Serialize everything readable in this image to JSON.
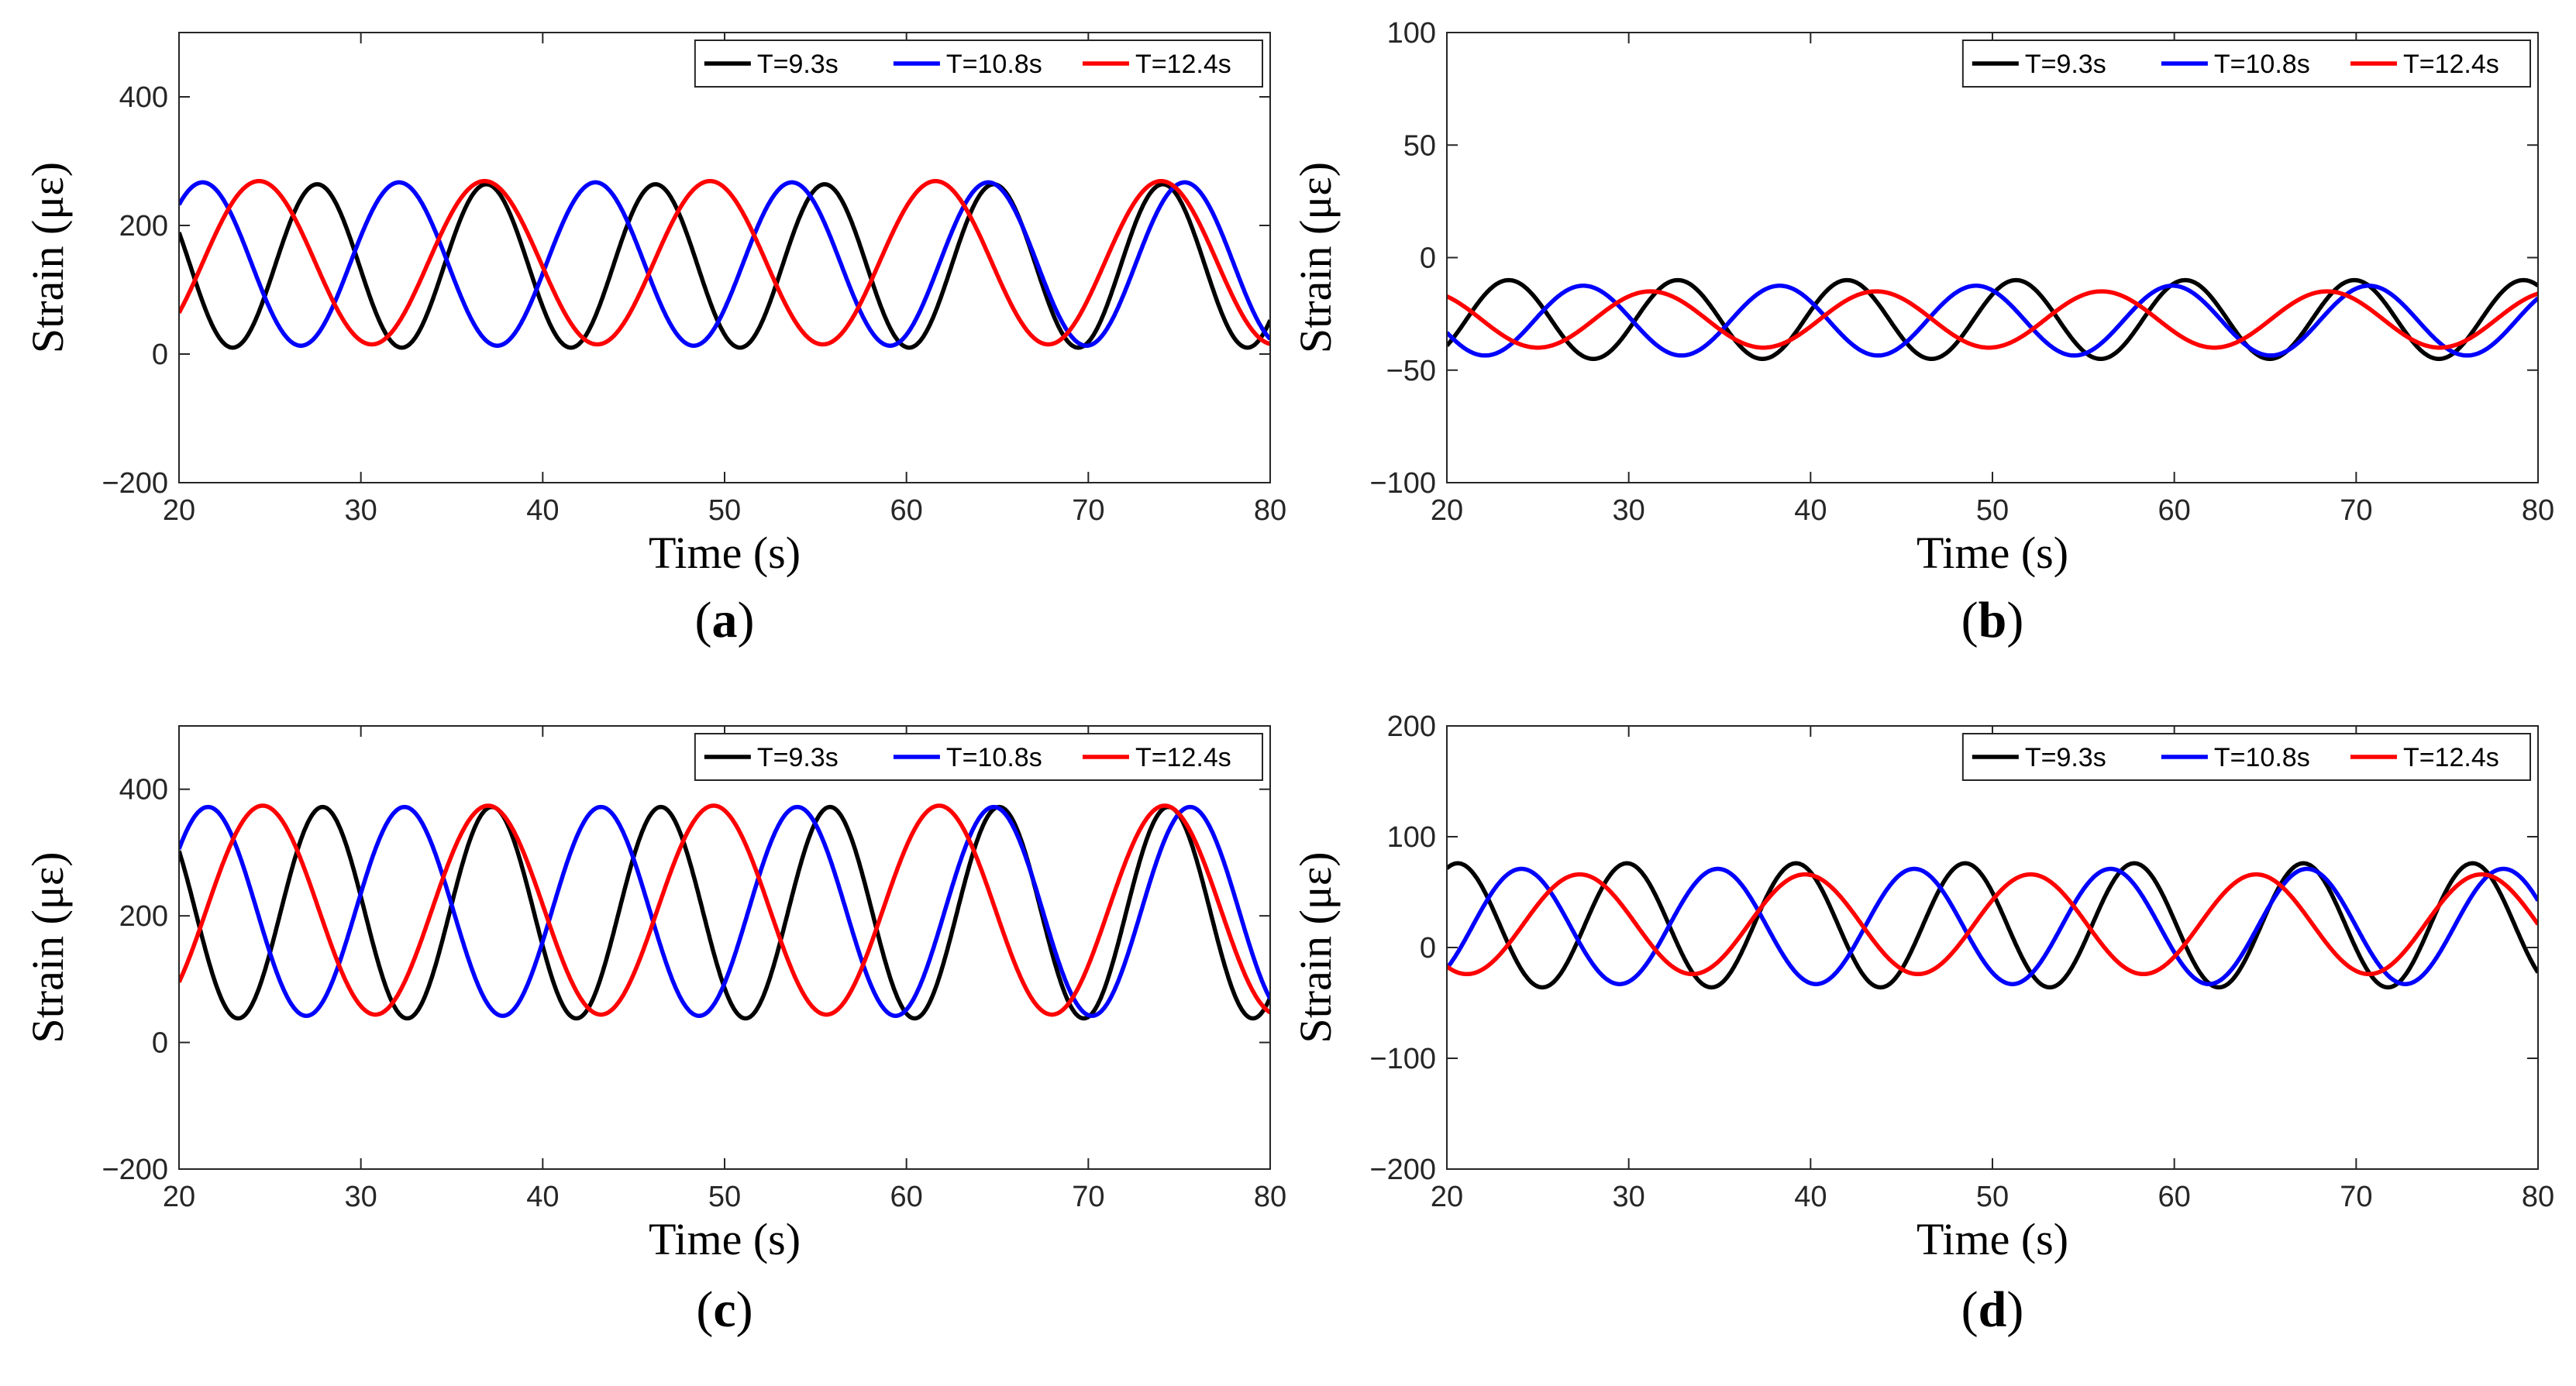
{
  "chart_data": [
    {
      "type": "line",
      "panel_label": "a",
      "xlabel": "Time (s)",
      "ylabel": "Strain (με)",
      "xlim": [
        20,
        80
      ],
      "ylim": [
        -200,
        500
      ],
      "xticks": [
        20,
        30,
        40,
        50,
        60,
        70,
        80
      ],
      "yticks": [
        -200,
        0,
        200,
        400
      ],
      "ytick_labels": [
        "−200",
        "0",
        "200",
        "400"
      ],
      "legend_position": "top-right",
      "series": [
        {
          "name": "T=9.3s",
          "color": "#000000",
          "mean": 137,
          "amplitude": 127,
          "period": 9.3,
          "peak_time": 36.9
        },
        {
          "name": "T=10.8s",
          "color": "#0000ff",
          "mean": 140,
          "amplitude": 127,
          "period": 10.8,
          "peak_time": 32.1
        },
        {
          "name": "T=12.4s",
          "color": "#ff0000",
          "mean": 142,
          "amplitude": 127,
          "period": 12.4,
          "peak_time": 36.8
        }
      ]
    },
    {
      "type": "line",
      "panel_label": "b",
      "xlabel": "Time (s)",
      "ylabel": "Strain (με)",
      "xlim": [
        20,
        80
      ],
      "ylim": [
        -100,
        100
      ],
      "xticks": [
        20,
        30,
        40,
        50,
        60,
        70,
        80
      ],
      "yticks": [
        -100,
        -50,
        0,
        50,
        100
      ],
      "ytick_labels": [
        "−100",
        "−50",
        "0",
        "50",
        "100"
      ],
      "legend_position": "top-right",
      "series": [
        {
          "name": "T=9.3s",
          "color": "#000000",
          "mean": -27.5,
          "amplitude": 17.5,
          "period": 9.3,
          "peak_time": 23.4
        },
        {
          "name": "T=10.8s",
          "color": "#0000ff",
          "mean": -28,
          "amplitude": 15.5,
          "period": 10.8,
          "peak_time": 27.5
        },
        {
          "name": "T=12.4s",
          "color": "#ff0000",
          "mean": -27.5,
          "amplitude": 12.5,
          "period": 12.4,
          "peak_time": 31.2
        }
      ]
    },
    {
      "type": "line",
      "panel_label": "c",
      "xlabel": "Time (s)",
      "ylabel": "Strain (με)",
      "xlim": [
        20,
        80
      ],
      "ylim": [
        -200,
        500
      ],
      "xticks": [
        20,
        30,
        40,
        50,
        60,
        70,
        80
      ],
      "yticks": [
        -200,
        0,
        200,
        400
      ],
      "ytick_labels": [
        "−200",
        "0",
        "200",
        "400"
      ],
      "legend_position": "top-right",
      "series": [
        {
          "name": "T=9.3s",
          "color": "#000000",
          "mean": 205,
          "amplitude": 167,
          "period": 9.3,
          "peak_time": 37.2
        },
        {
          "name": "T=10.8s",
          "color": "#0000ff",
          "mean": 207,
          "amplitude": 165,
          "period": 10.8,
          "peak_time": 32.4
        },
        {
          "name": "T=12.4s",
          "color": "#ff0000",
          "mean": 209,
          "amplitude": 165,
          "period": 12.4,
          "peak_time": 37.0
        }
      ]
    },
    {
      "type": "line",
      "panel_label": "d",
      "xlabel": "Time (s)",
      "ylabel": "Strain (με)",
      "xlim": [
        20,
        80
      ],
      "ylim": [
        -200,
        200
      ],
      "xticks": [
        20,
        30,
        40,
        50,
        60,
        70,
        80
      ],
      "yticks": [
        -200,
        -100,
        0,
        100,
        200
      ],
      "ytick_labels": [
        "−200",
        "−100",
        "0",
        "100",
        "200"
      ],
      "legend_position": "top-right",
      "series": [
        {
          "name": "T=9.3s",
          "color": "#000000",
          "mean": 20,
          "amplitude": 56,
          "period": 9.3,
          "peak_time": 20.6
        },
        {
          "name": "T=10.8s",
          "color": "#0000ff",
          "mean": 19,
          "amplitude": 52,
          "period": 10.8,
          "peak_time": 24.1
        },
        {
          "name": "T=12.4s",
          "color": "#ff0000",
          "mean": 21,
          "amplitude": 45,
          "period": 12.4,
          "peak_time": 27.3
        }
      ]
    }
  ]
}
